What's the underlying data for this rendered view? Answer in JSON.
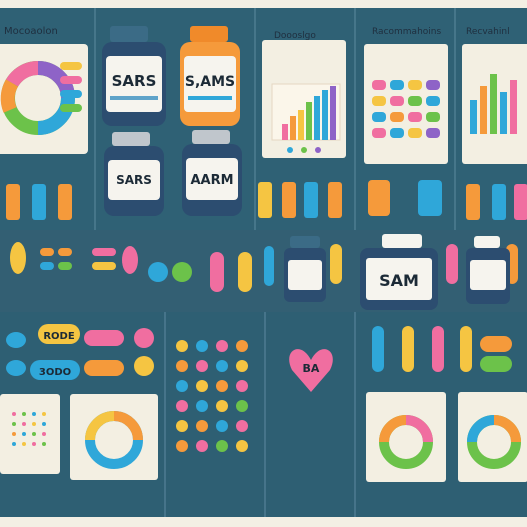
{
  "headers": {
    "left": "Mocoaolon",
    "middle": "Doooslgo",
    "right_a": "Racommahoins",
    "right_b": "Recvahinl"
  },
  "labels": {
    "bottle_1": "SARS",
    "bottle_2": "S,AMS",
    "bottle_3": "AARM",
    "bottle_4": "SAM",
    "pill_text_1": "RODE",
    "pill_text_2": "3ODO",
    "heart_text": "BA"
  },
  "colors": {
    "panel": "#2e5f73",
    "panel_dark": "#244f61",
    "cream": "#f3efe2",
    "orange": "#f59a3b",
    "blue": "#2fa7d9",
    "pink": "#f06ea0",
    "green": "#6cc24a",
    "yellow": "#f5c542",
    "purple": "#8e63c7"
  }
}
